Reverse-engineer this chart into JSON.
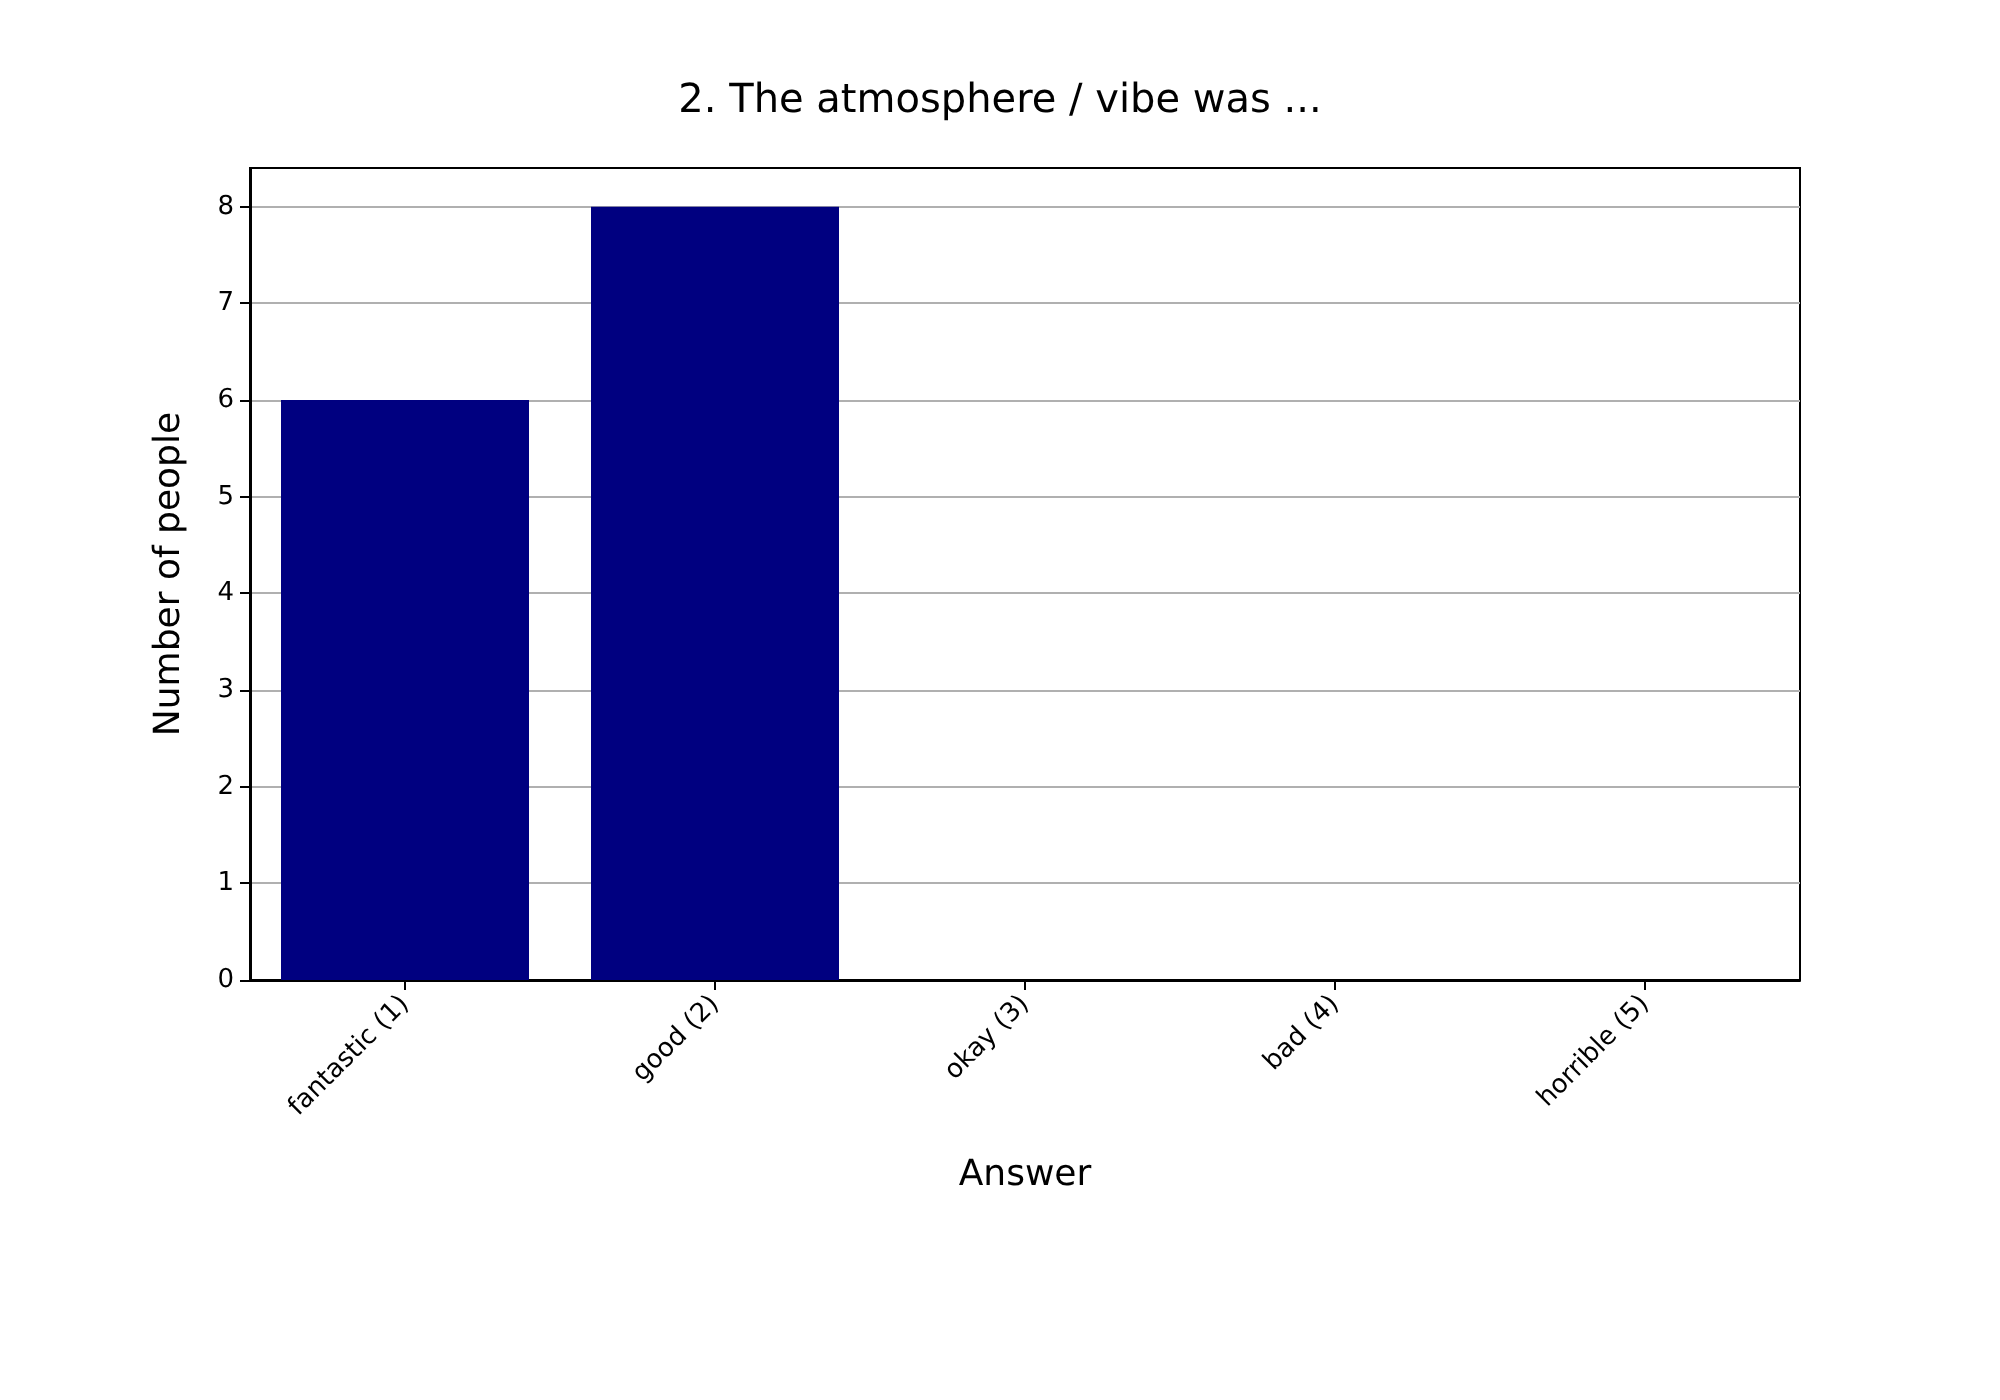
{
  "chart_data": {
    "type": "bar",
    "title": "2. The atmosphere / vibe was ...",
    "xlabel": "Answer",
    "ylabel": "Number of people",
    "categories": [
      "fantastic (1)",
      "good (2)",
      "okay (3)",
      "bad (4)",
      "horrible (5)"
    ],
    "values": [
      6,
      8,
      0,
      0,
      0
    ],
    "color": "#000080",
    "ylim": [
      0,
      8.4
    ],
    "yticks": [
      0,
      1,
      2,
      3,
      4,
      5,
      6,
      7,
      8
    ],
    "grid": "y"
  }
}
